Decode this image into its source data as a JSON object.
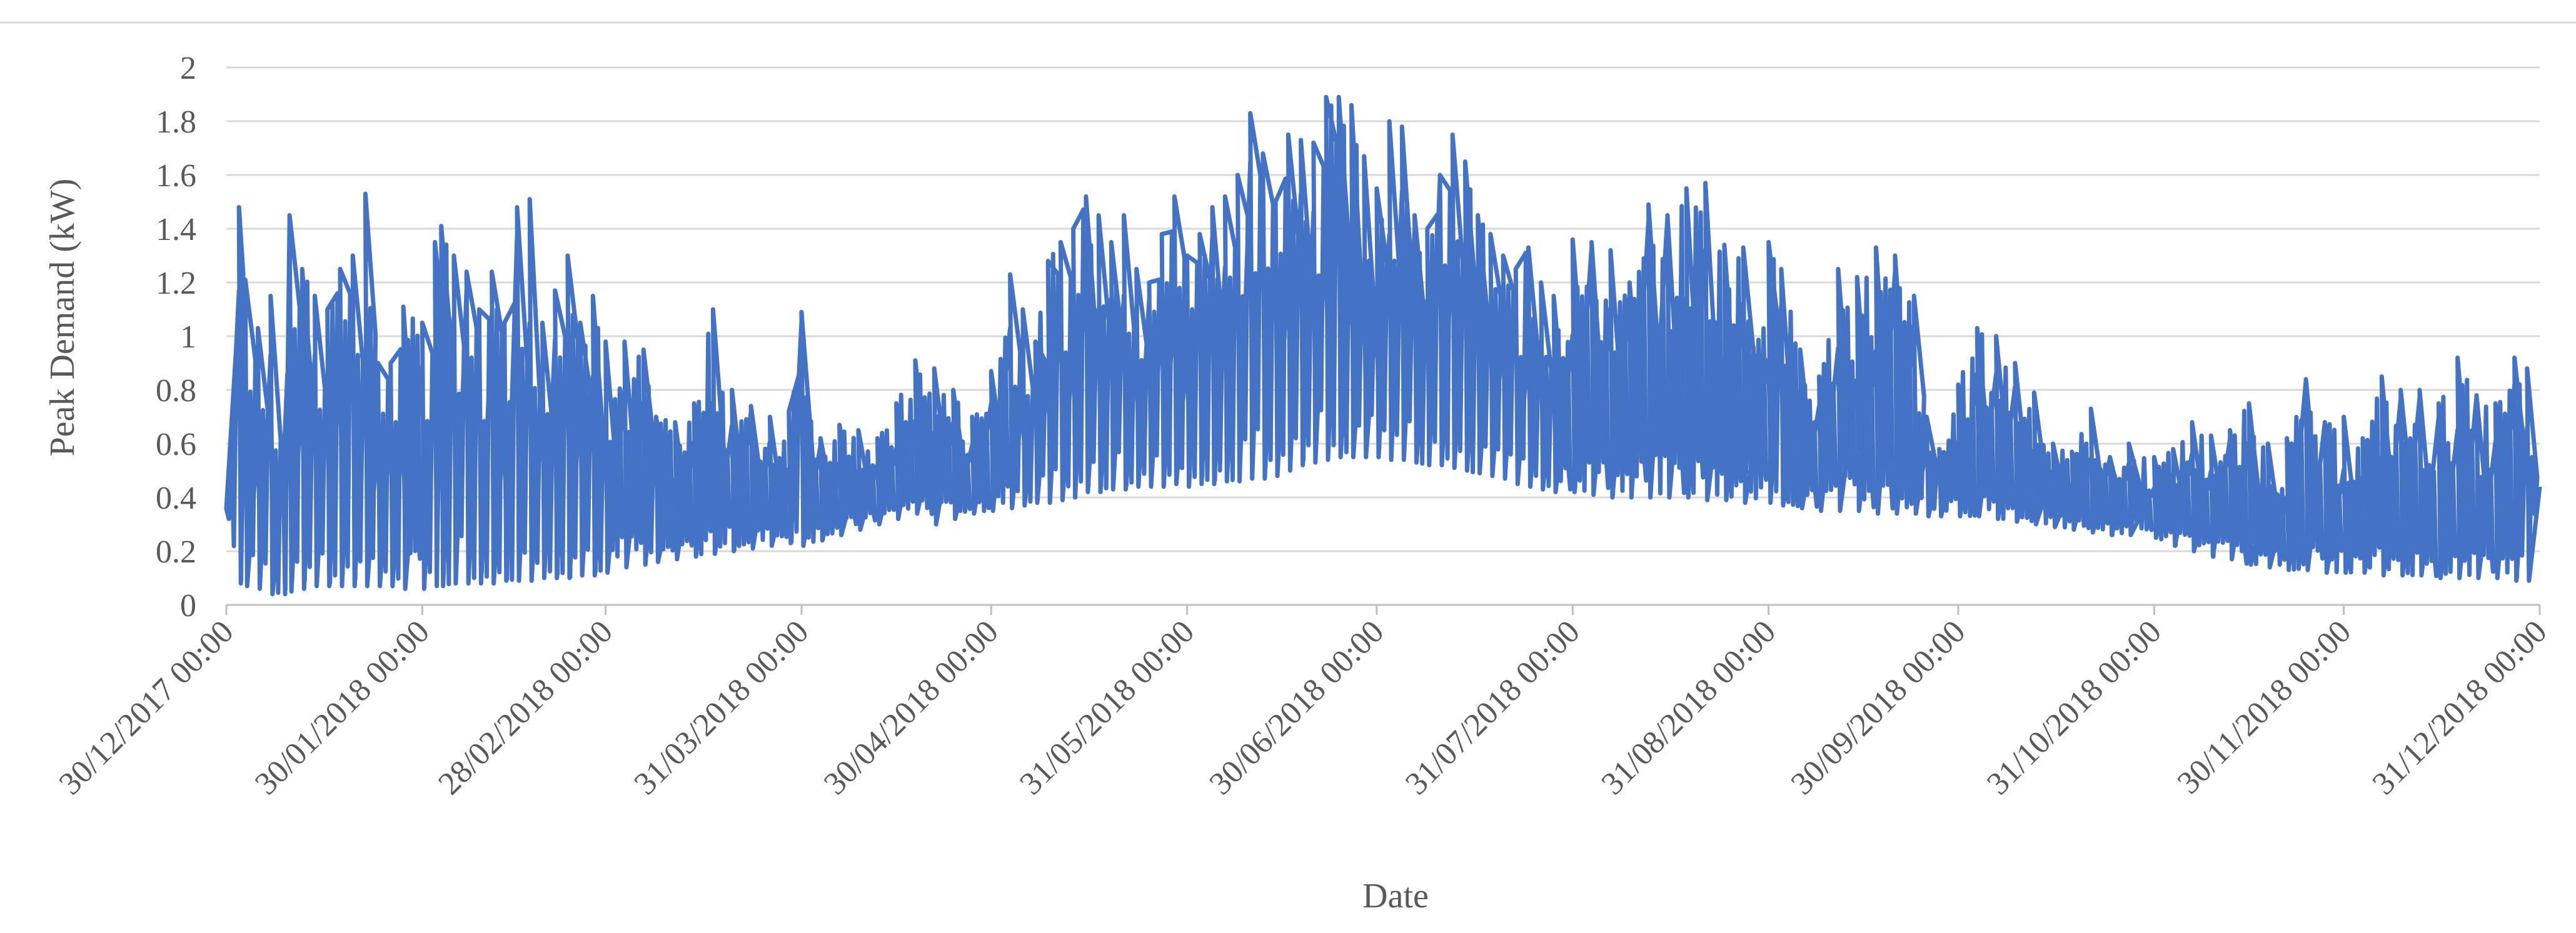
{
  "chart_data": {
    "type": "line",
    "title": "",
    "xlabel": "Date",
    "ylabel": "Peak Demand (kW)",
    "ylim": [
      0,
      2
    ],
    "xlim": [
      "2017-12-30",
      "2018-12-31"
    ],
    "grid": true,
    "legend": "none",
    "colors": {
      "series": "#4472C4",
      "grid": "#D9D9D9",
      "axis": "#BFBFBF",
      "text": "#595959"
    },
    "yticks": [
      {
        "value": 0,
        "label": "0"
      },
      {
        "value": 0.2,
        "label": "0.2"
      },
      {
        "value": 0.4,
        "label": "0.4"
      },
      {
        "value": 0.6,
        "label": "0.6"
      },
      {
        "value": 0.8,
        "label": "0.8"
      },
      {
        "value": 1,
        "label": "1"
      },
      {
        "value": 1.2,
        "label": "1.2"
      },
      {
        "value": 1.4,
        "label": "1.4"
      },
      {
        "value": 1.6,
        "label": "1.6"
      },
      {
        "value": 1.8,
        "label": "1.8"
      },
      {
        "value": 2,
        "label": "2"
      }
    ],
    "xticks": [
      {
        "date": "2017-12-30",
        "label": "30/12/2017 00:00"
      },
      {
        "date": "2018-01-30",
        "label": "30/01/2018 00:00"
      },
      {
        "date": "2018-02-28",
        "label": "28/02/2018 00:00"
      },
      {
        "date": "2018-03-31",
        "label": "31/03/2018 00:00"
      },
      {
        "date": "2018-04-30",
        "label": "30/04/2018 00:00"
      },
      {
        "date": "2018-05-31",
        "label": "31/05/2018 00:00"
      },
      {
        "date": "2018-06-30",
        "label": "30/06/2018 00:00"
      },
      {
        "date": "2018-07-31",
        "label": "31/07/2018 00:00"
      },
      {
        "date": "2018-08-31",
        "label": "31/08/2018 00:00"
      },
      {
        "date": "2018-09-30",
        "label": "30/09/2018 00:00"
      },
      {
        "date": "2018-10-31",
        "label": "31/10/2018 00:00"
      },
      {
        "date": "2018-11-30",
        "label": "30/11/2018 00:00"
      },
      {
        "date": "2018-12-31",
        "label": "31/12/2018 00:00"
      }
    ],
    "series": [
      {
        "daily_range": [
          [
            "2017-12-30",
            0.35,
            0.36
          ],
          [
            "2018-01-01",
            0.08,
            1.48
          ],
          [
            "2018-01-02",
            0.07,
            1.21
          ],
          [
            "2018-01-04",
            0.06,
            1.03
          ],
          [
            "2018-01-06",
            0.04,
            1.15
          ],
          [
            "2018-01-08",
            0.04,
            0.5
          ],
          [
            "2018-01-09",
            0.05,
            1.45
          ],
          [
            "2018-01-11",
            0.06,
            1.25
          ],
          [
            "2018-01-13",
            0.07,
            1.15
          ],
          [
            "2018-01-15",
            0.07,
            1.1
          ],
          [
            "2018-01-17",
            0.07,
            1.25
          ],
          [
            "2018-01-19",
            0.07,
            1.3
          ],
          [
            "2018-01-21",
            0.07,
            1.53
          ],
          [
            "2018-01-23",
            0.07,
            0.9
          ],
          [
            "2018-01-25",
            0.07,
            0.9
          ],
          [
            "2018-01-27",
            0.06,
            1.11
          ],
          [
            "2018-01-30",
            0.06,
            1.05
          ],
          [
            "2018-02-01",
            0.07,
            1.35
          ],
          [
            "2018-02-02",
            0.07,
            1.41
          ],
          [
            "2018-02-04",
            0.08,
            1.3
          ],
          [
            "2018-02-06",
            0.08,
            1.24
          ],
          [
            "2018-02-08",
            0.08,
            1.1
          ],
          [
            "2018-02-10",
            0.08,
            1.24
          ],
          [
            "2018-02-12",
            0.09,
            1.05
          ],
          [
            "2018-02-14",
            0.09,
            1.48
          ],
          [
            "2018-02-16",
            0.09,
            1.51
          ],
          [
            "2018-02-18",
            0.1,
            1.05
          ],
          [
            "2018-02-20",
            0.1,
            1.17
          ],
          [
            "2018-02-22",
            0.1,
            1.3
          ],
          [
            "2018-02-24",
            0.11,
            1.05
          ],
          [
            "2018-02-26",
            0.11,
            1.15
          ],
          [
            "2018-02-28",
            0.12,
            0.98
          ],
          [
            "2018-03-03",
            0.14,
            0.98
          ],
          [
            "2018-03-06",
            0.15,
            0.95
          ],
          [
            "2018-03-08",
            0.16,
            0.7
          ],
          [
            "2018-03-11",
            0.17,
            0.68
          ],
          [
            "2018-03-14",
            0.18,
            0.75
          ],
          [
            "2018-03-17",
            0.19,
            1.1
          ],
          [
            "2018-03-20",
            0.2,
            0.8
          ],
          [
            "2018-03-23",
            0.21,
            0.74
          ],
          [
            "2018-03-26",
            0.22,
            0.7
          ],
          [
            "2018-03-29",
            0.23,
            0.72
          ],
          [
            "2018-03-31",
            0.22,
            1.09
          ],
          [
            "2018-04-03",
            0.24,
            0.62
          ],
          [
            "2018-04-06",
            0.26,
            0.67
          ],
          [
            "2018-04-09",
            0.28,
            0.65
          ],
          [
            "2018-04-12",
            0.3,
            0.62
          ],
          [
            "2018-04-15",
            0.32,
            0.75
          ],
          [
            "2018-04-18",
            0.34,
            0.91
          ],
          [
            "2018-04-21",
            0.3,
            0.88
          ],
          [
            "2018-04-24",
            0.32,
            0.8
          ],
          [
            "2018-04-27",
            0.34,
            0.7
          ],
          [
            "2018-04-30",
            0.35,
            0.87
          ],
          [
            "2018-05-03",
            0.36,
            1.23
          ],
          [
            "2018-05-05",
            0.37,
            1.1
          ],
          [
            "2018-05-07",
            0.38,
            0.98
          ],
          [
            "2018-05-09",
            0.38,
            1.28
          ],
          [
            "2018-05-11",
            0.39,
            1.35
          ],
          [
            "2018-05-13",
            0.4,
            1.4
          ],
          [
            "2018-05-15",
            0.42,
            1.52
          ],
          [
            "2018-05-17",
            0.42,
            1.45
          ],
          [
            "2018-05-19",
            0.43,
            1.35
          ],
          [
            "2018-05-21",
            0.43,
            1.45
          ],
          [
            "2018-05-23",
            0.44,
            1.25
          ],
          [
            "2018-05-25",
            0.44,
            1.2
          ],
          [
            "2018-05-27",
            0.44,
            1.38
          ],
          [
            "2018-05-29",
            0.45,
            1.52
          ],
          [
            "2018-05-31",
            0.44,
            1.3
          ],
          [
            "2018-06-02",
            0.45,
            1.38
          ],
          [
            "2018-06-04",
            0.45,
            1.48
          ],
          [
            "2018-06-06",
            0.46,
            1.52
          ],
          [
            "2018-06-08",
            0.46,
            1.6
          ],
          [
            "2018-06-10",
            0.47,
            1.83
          ],
          [
            "2018-06-12",
            0.47,
            1.68
          ],
          [
            "2018-06-14",
            0.48,
            1.5
          ],
          [
            "2018-06-16",
            0.5,
            1.75
          ],
          [
            "2018-06-18",
            0.52,
            1.73
          ],
          [
            "2018-06-20",
            0.53,
            1.72
          ],
          [
            "2018-06-22",
            0.54,
            1.89
          ],
          [
            "2018-06-24",
            0.55,
            1.89
          ],
          [
            "2018-06-26",
            0.55,
            1.86
          ],
          [
            "2018-06-28",
            0.55,
            1.67
          ],
          [
            "2018-06-30",
            0.55,
            1.55
          ],
          [
            "2018-07-02",
            0.54,
            1.8
          ],
          [
            "2018-07-04",
            0.54,
            1.78
          ],
          [
            "2018-07-06",
            0.53,
            1.45
          ],
          [
            "2018-07-08",
            0.52,
            1.4
          ],
          [
            "2018-07-10",
            0.52,
            1.6
          ],
          [
            "2018-07-12",
            0.51,
            1.75
          ],
          [
            "2018-07-14",
            0.5,
            1.65
          ],
          [
            "2018-07-16",
            0.49,
            1.45
          ],
          [
            "2018-07-18",
            0.48,
            1.38
          ],
          [
            "2018-07-20",
            0.47,
            1.3
          ],
          [
            "2018-07-22",
            0.45,
            1.25
          ],
          [
            "2018-07-24",
            0.44,
            1.33
          ],
          [
            "2018-07-26",
            0.43,
            1.2
          ],
          [
            "2018-07-28",
            0.42,
            1.15
          ],
          [
            "2018-07-31",
            0.42,
            1.36
          ],
          [
            "2018-08-03",
            0.41,
            1.35
          ],
          [
            "2018-08-06",
            0.4,
            1.32
          ],
          [
            "2018-08-09",
            0.4,
            1.2
          ],
          [
            "2018-08-12",
            0.4,
            1.49
          ],
          [
            "2018-08-15",
            0.4,
            1.45
          ],
          [
            "2018-08-18",
            0.4,
            1.55
          ],
          [
            "2018-08-21",
            0.39,
            1.57
          ],
          [
            "2018-08-24",
            0.39,
            1.34
          ],
          [
            "2018-08-27",
            0.38,
            1.33
          ],
          [
            "2018-08-31",
            0.38,
            1.35
          ],
          [
            "2018-09-02",
            0.37,
            1.25
          ],
          [
            "2018-09-05",
            0.36,
            0.95
          ],
          [
            "2018-09-08",
            0.35,
            0.85
          ],
          [
            "2018-09-11",
            0.35,
            1.25
          ],
          [
            "2018-09-14",
            0.35,
            1.22
          ],
          [
            "2018-09-17",
            0.34,
            1.33
          ],
          [
            "2018-09-20",
            0.34,
            1.3
          ],
          [
            "2018-09-23",
            0.34,
            1.15
          ],
          [
            "2018-09-25",
            0.33,
            0.7
          ],
          [
            "2018-09-27",
            0.33,
            0.58
          ],
          [
            "2018-09-30",
            0.33,
            0.82
          ],
          [
            "2018-10-03",
            0.33,
            1.03
          ],
          [
            "2018-10-06",
            0.32,
            1.0
          ],
          [
            "2018-10-09",
            0.31,
            0.9
          ],
          [
            "2018-10-12",
            0.3,
            0.79
          ],
          [
            "2018-10-15",
            0.29,
            0.6
          ],
          [
            "2018-10-18",
            0.28,
            0.57
          ],
          [
            "2018-10-21",
            0.27,
            0.73
          ],
          [
            "2018-10-24",
            0.26,
            0.55
          ],
          [
            "2018-10-27",
            0.26,
            0.6
          ],
          [
            "2018-10-31",
            0.25,
            0.55
          ],
          [
            "2018-11-03",
            0.22,
            0.58
          ],
          [
            "2018-11-06",
            0.2,
            0.68
          ],
          [
            "2018-11-09",
            0.18,
            0.63
          ],
          [
            "2018-11-12",
            0.17,
            0.65
          ],
          [
            "2018-11-15",
            0.15,
            0.75
          ],
          [
            "2018-11-18",
            0.14,
            0.6
          ],
          [
            "2018-11-21",
            0.13,
            0.62
          ],
          [
            "2018-11-24",
            0.13,
            0.84
          ],
          [
            "2018-11-27",
            0.12,
            0.68
          ],
          [
            "2018-11-30",
            0.12,
            0.7
          ],
          [
            "2018-12-03",
            0.12,
            0.62
          ],
          [
            "2018-12-06",
            0.11,
            0.85
          ],
          [
            "2018-12-09",
            0.11,
            0.8
          ],
          [
            "2018-12-12",
            0.11,
            0.8
          ],
          [
            "2018-12-15",
            0.1,
            0.75
          ],
          [
            "2018-12-18",
            0.1,
            0.92
          ],
          [
            "2018-12-21",
            0.1,
            0.78
          ],
          [
            "2018-12-24",
            0.1,
            0.75
          ],
          [
            "2018-12-27",
            0.09,
            0.92
          ],
          [
            "2018-12-29",
            0.09,
            0.88
          ],
          [
            "2018-12-31",
            0.43,
            0.45
          ]
        ]
      }
    ]
  }
}
